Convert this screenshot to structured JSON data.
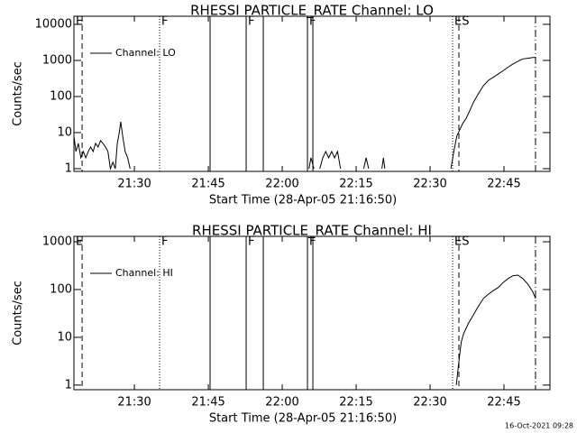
{
  "chart_data": [
    {
      "type": "line",
      "title": "RHESSI PARTICLE_RATE Channel: LO",
      "x_label": "Start Time (28-Apr-05 21:16:50)",
      "y_label": "Counts/sec",
      "log_y": true,
      "xlim": [
        0.9,
        97.5
      ],
      "ylim": [
        0.84,
        16800
      ],
      "xticks": [
        {
          "value": 13.17,
          "label": "21:30"
        },
        {
          "value": 28.17,
          "label": "21:45"
        },
        {
          "value": 43.17,
          "label": "22:00"
        },
        {
          "value": 58.17,
          "label": "22:15"
        },
        {
          "value": 73.17,
          "label": "22:30"
        },
        {
          "value": 88.17,
          "label": "22:45"
        }
      ],
      "yticks": [
        1,
        10,
        100,
        1000,
        10000
      ],
      "vlines": [
        {
          "x": 0.9,
          "style": "solid",
          "label": "E"
        },
        {
          "x": 2.56,
          "style": "dashed"
        },
        {
          "x": 18.29,
          "style": "dotted",
          "label": "F"
        },
        {
          "x": 28.53,
          "style": "solid"
        },
        {
          "x": 35.85,
          "style": "solid",
          "label": "F"
        },
        {
          "x": 39.33,
          "style": "solid"
        },
        {
          "x": 48.29,
          "style": "solid",
          "label": "F"
        },
        {
          "x": 49.39,
          "style": "solid"
        },
        {
          "x": 77.74,
          "style": "dotted",
          "label": "ES"
        },
        {
          "x": 79.02,
          "style": "dashed"
        },
        {
          "x": 94.57,
          "style": "dashdot"
        }
      ],
      "series": [
        {
          "name": "Channel: LO",
          "color": "#000000",
          "x": [
            0.9,
            1.3,
            1.8,
            2.3,
            2.8,
            3.3,
            3.8,
            4.3,
            4.8,
            5.3,
            5.8,
            6.3,
            6.8,
            7.3,
            7.8,
            8.3,
            8.8,
            9.3,
            9.7,
            10.1,
            10.4,
            10.8,
            11.3,
            11.8,
            12.3,
            12.8,
            48.2,
            48.6,
            49.0,
            49.6,
            50.2,
            50.8,
            51.4,
            52.0,
            52.6,
            53.2,
            53.8,
            54.4,
            55.0,
            55.6,
            59.7,
            60.2,
            60.7,
            61.0,
            63.4,
            63.7,
            64.0,
            64.3,
            77.4,
            78.0,
            78.6,
            79.2,
            79.8,
            80.5,
            81.2,
            82.0,
            83.0,
            84.0,
            85.0,
            86.0,
            87.0,
            88.0,
            89.0,
            90.0,
            91.0,
            92.0,
            93.0,
            94.0,
            94.6
          ],
          "values": [
            8,
            3,
            5,
            2,
            3,
            2,
            3,
            4,
            3,
            5,
            4,
            6,
            5,
            4,
            3,
            1,
            1.5,
            1,
            5,
            10,
            20,
            8,
            3,
            2,
            1,
            null,
            null,
            1,
            2,
            1,
            null,
            1,
            2,
            3,
            2,
            3,
            2,
            3,
            1,
            null,
            1,
            2,
            1,
            null,
            1,
            2,
            1,
            null,
            1,
            3,
            8,
            12,
            18,
            25,
            40,
            70,
            120,
            200,
            280,
            340,
            420,
            520,
            650,
            800,
            950,
            1100,
            1150,
            1200,
            1200
          ]
        }
      ]
    },
    {
      "type": "line",
      "title": "RHESSI PARTICLE_RATE Channel: HI",
      "x_label": "Start Time (28-Apr-05 21:16:50)",
      "y_label": "Counts/sec",
      "log_y": true,
      "xlim": [
        0.9,
        97.5
      ],
      "ylim": [
        0.8,
        1300
      ],
      "xticks": [
        {
          "value": 13.17,
          "label": "21:30"
        },
        {
          "value": 28.17,
          "label": "21:45"
        },
        {
          "value": 43.17,
          "label": "22:00"
        },
        {
          "value": 58.17,
          "label": "22:15"
        },
        {
          "value": 73.17,
          "label": "22:30"
        },
        {
          "value": 88.17,
          "label": "22:45"
        }
      ],
      "yticks": [
        1,
        10,
        100,
        1000
      ],
      "vlines": [
        {
          "x": 0.9,
          "style": "solid",
          "label": "E"
        },
        {
          "x": 2.56,
          "style": "dashed"
        },
        {
          "x": 18.29,
          "style": "dotted",
          "label": "F"
        },
        {
          "x": 28.53,
          "style": "solid"
        },
        {
          "x": 35.85,
          "style": "solid",
          "label": "F"
        },
        {
          "x": 39.33,
          "style": "solid"
        },
        {
          "x": 48.29,
          "style": "solid",
          "label": "F"
        },
        {
          "x": 49.39,
          "style": "solid"
        },
        {
          "x": 77.74,
          "style": "dotted",
          "label": "ES"
        },
        {
          "x": 79.02,
          "style": "dashed"
        },
        {
          "x": 94.57,
          "style": "dashdot"
        }
      ],
      "series": [
        {
          "name": "Channel: HI",
          "color": "#000000",
          "x": [
            78.5,
            79.0,
            79.5,
            80.0,
            81.0,
            82.0,
            83.0,
            84.0,
            85.0,
            86.0,
            87.0,
            88.0,
            89.0,
            90.0,
            91.0,
            92.0,
            93.0,
            94.0,
            94.6
          ],
          "values": [
            1,
            3,
            8,
            12,
            20,
            30,
            45,
            65,
            80,
            95,
            110,
            140,
            170,
            195,
            200,
            170,
            130,
            90,
            65
          ]
        }
      ]
    }
  ],
  "footer": "16-Oct-2021 09:28"
}
